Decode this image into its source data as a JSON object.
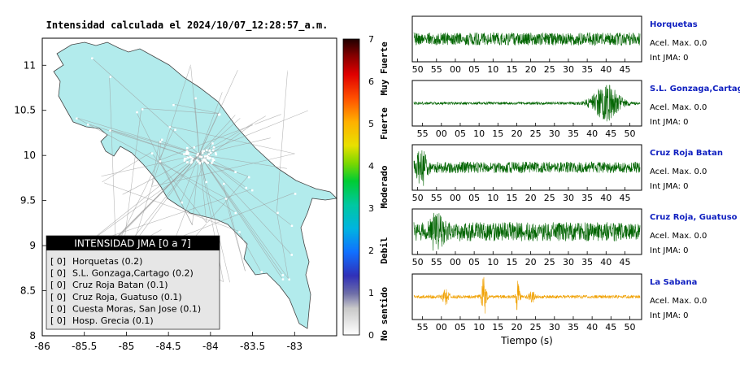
{
  "map": {
    "title": "Intensidad calculada el 2024/10/07_12:28:57_a.m.",
    "x_ticks": [
      "-86",
      "-85.5",
      "-85",
      "-84.5",
      "-84",
      "-83.5",
      "-83"
    ],
    "y_ticks": [
      "8",
      "8.5",
      "9",
      "9.5",
      "10",
      "10.5",
      "11"
    ],
    "xlim": [
      -86,
      -82.5
    ],
    "ylim": [
      8,
      11.3
    ],
    "land_color": "#b2ebec"
  },
  "colorbar": {
    "ticks": [
      "0",
      "1",
      "2",
      "3",
      "4",
      "5",
      "6",
      "7"
    ],
    "range": [
      0,
      7
    ],
    "category_labels": [
      "No sentido",
      "Debil",
      "Moderado",
      "Fuerte",
      "Muy Fuerte"
    ]
  },
  "legend": {
    "title": "INTENSIDAD JMA [0 a 7]",
    "items": [
      {
        "level": "[ 0]",
        "name": "Horquetas (0.2)"
      },
      {
        "level": "[ 0]",
        "name": "S.L. Gonzaga,Cartago (0.2)"
      },
      {
        "level": "[ 0]",
        "name": "Cruz Roja Batan (0.1)"
      },
      {
        "level": "[ 0]",
        "name": "Cruz Roja, Guatuso (0.1)"
      },
      {
        "level": "[ 0]",
        "name": "Cuesta Moras, San Jose (0.1)"
      },
      {
        "level": "[ 0]",
        "name": "Hosp. Grecia (0.1)"
      }
    ]
  },
  "chart_data": [
    {
      "type": "line",
      "station": "Horquetas",
      "acel_label": "Acel. Max. 0.0",
      "int_label": "Int JMA: 0",
      "tick_labels": [
        "50",
        "55",
        "00",
        "05",
        "10",
        "15",
        "20",
        "25",
        "30",
        "35",
        "40",
        "45"
      ],
      "color": "#006400",
      "amplitude": 0.55,
      "bursts": [],
      "noise_floor": 0.55
    },
    {
      "type": "line",
      "station": "S.L. Gonzaga,Cartago",
      "acel_label": "Acel. Max. 0.0",
      "int_label": "Int JMA: 0",
      "tick_labels": [
        "55",
        "00",
        "05",
        "10",
        "15",
        "20",
        "25",
        "30",
        "35",
        "40",
        "45",
        "50"
      ],
      "color": "#006400",
      "amplitude": 0.9,
      "bursts": [
        [
          0.85,
          0.06,
          1.0
        ]
      ],
      "noise_floor": 0.07
    },
    {
      "type": "line",
      "station": "Cruz Roja Batan",
      "acel_label": "Acel. Max. 0.0",
      "int_label": "Int JMA: 0",
      "tick_labels": [
        "50",
        "55",
        "00",
        "05",
        "10",
        "15",
        "20",
        "25",
        "30",
        "35",
        "40",
        "45"
      ],
      "color": "#006400",
      "amplitude": 0.9,
      "bursts": [
        [
          0.035,
          0.02,
          1.0
        ]
      ],
      "noise_floor": 0.3
    },
    {
      "type": "line",
      "station": "Cruz Roja, Guatuso",
      "acel_label": "Acel. Max. 0.0",
      "int_label": "Int JMA: 0",
      "tick_labels": [
        "50",
        "55",
        "00",
        "05",
        "10",
        "15",
        "20",
        "25",
        "30",
        "35",
        "40",
        "45"
      ],
      "color": "#006400",
      "amplitude": 0.9,
      "bursts": [
        [
          0.1,
          0.025,
          0.9
        ]
      ],
      "noise_floor": 0.5
    },
    {
      "type": "line",
      "station": "La Sabana",
      "acel_label": "Acel. Max. 0.0",
      "int_label": "Int JMA: 0",
      "tick_labels": [
        "55",
        "00",
        "05",
        "10",
        "15",
        "20",
        "25",
        "30",
        "35",
        "40",
        "45",
        "50"
      ],
      "color": "#f0a000",
      "amplitude": 0.95,
      "bursts": [
        [
          0.31,
          0.01,
          1.0
        ],
        [
          0.46,
          0.008,
          0.9
        ],
        [
          0.14,
          0.015,
          0.35
        ],
        [
          0.52,
          0.015,
          0.3
        ]
      ],
      "noise_floor": 0.08,
      "xlabel": "Tiempo (s)"
    }
  ]
}
